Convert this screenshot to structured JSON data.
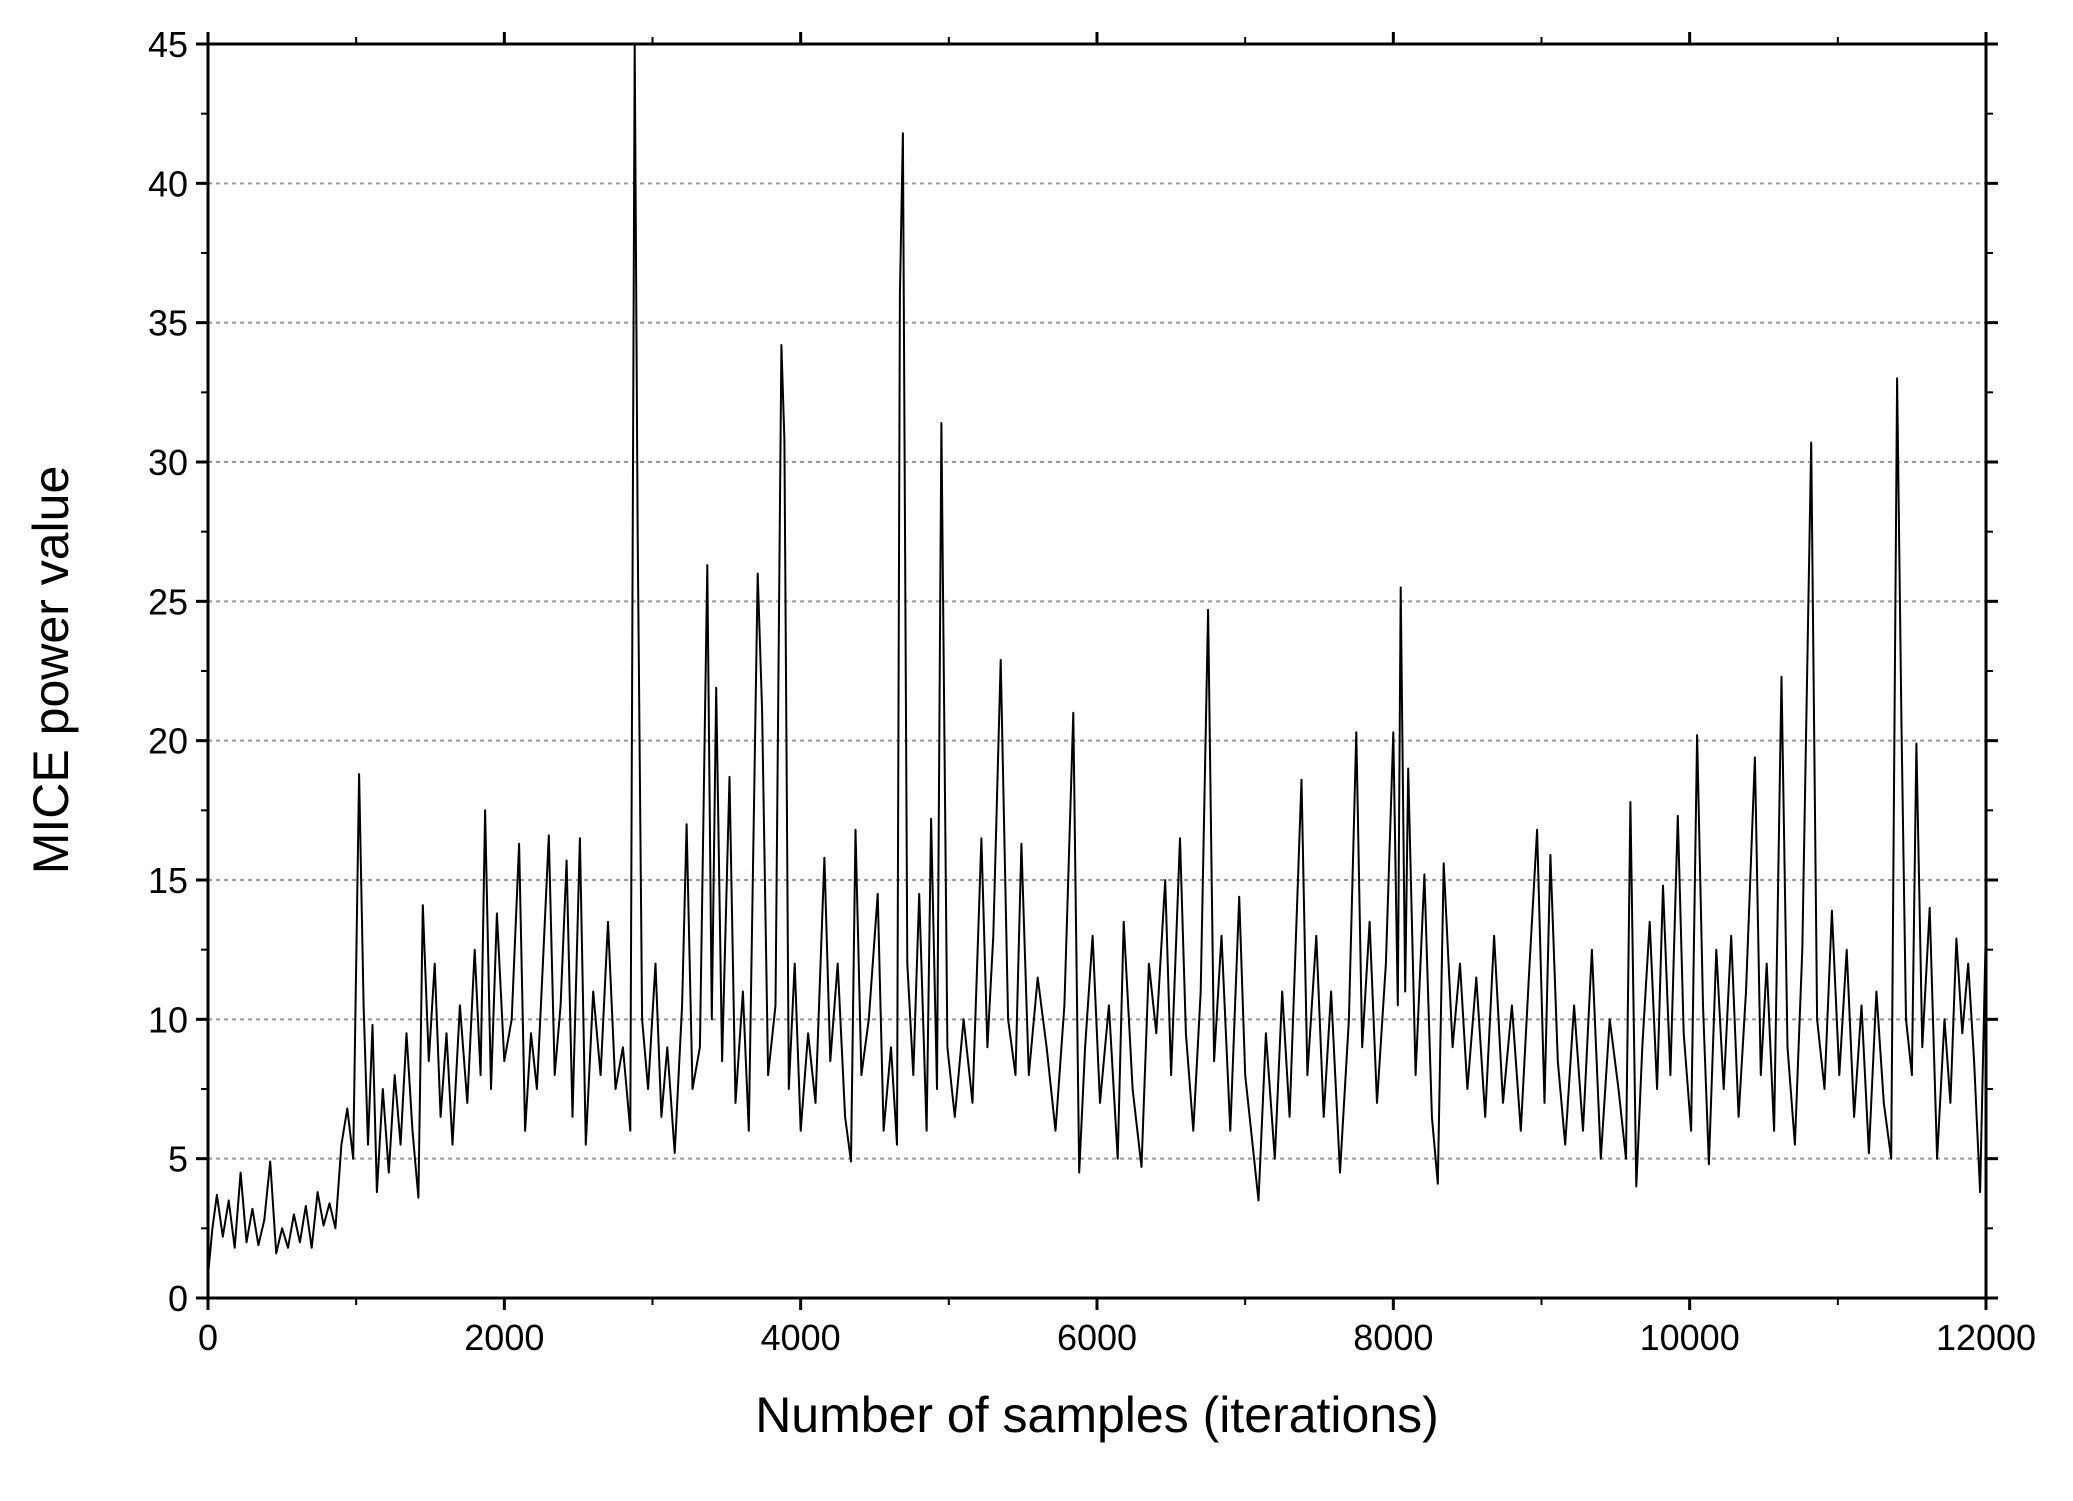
{
  "chart_data": {
    "type": "line",
    "xlabel": "Number of samples (iterations)",
    "ylabel": "MICE power value",
    "xlim": [
      0,
      12000
    ],
    "ylim": [
      0,
      45
    ],
    "xticks": [
      0,
      2000,
      4000,
      6000,
      8000,
      10000,
      12000
    ],
    "yticks": [
      0,
      5,
      10,
      15,
      20,
      25,
      30,
      35,
      40,
      45
    ],
    "grid": true,
    "x": [
      0,
      30,
      60,
      100,
      140,
      180,
      220,
      260,
      300,
      340,
      380,
      420,
      460,
      500,
      540,
      580,
      620,
      660,
      700,
      740,
      780,
      820,
      860,
      900,
      940,
      980,
      1020,
      1050,
      1080,
      1110,
      1140,
      1180,
      1220,
      1260,
      1300,
      1340,
      1380,
      1420,
      1450,
      1490,
      1530,
      1570,
      1610,
      1650,
      1700,
      1750,
      1800,
      1840,
      1870,
      1910,
      1950,
      2000,
      2050,
      2100,
      2140,
      2180,
      2220,
      2260,
      2300,
      2340,
      2380,
      2420,
      2460,
      2510,
      2550,
      2600,
      2650,
      2700,
      2750,
      2800,
      2850,
      2880,
      2900,
      2930,
      2970,
      3020,
      3060,
      3100,
      3150,
      3200,
      3230,
      3270,
      3320,
      3370,
      3400,
      3430,
      3470,
      3520,
      3560,
      3610,
      3650,
      3710,
      3740,
      3780,
      3830,
      3870,
      3890,
      3920,
      3960,
      4000,
      4050,
      4100,
      4160,
      4200,
      4250,
      4300,
      4340,
      4370,
      4410,
      4460,
      4520,
      4560,
      4610,
      4650,
      4670,
      4690,
      4720,
      4760,
      4800,
      4850,
      4880,
      4920,
      4950,
      4990,
      5040,
      5100,
      5160,
      5220,
      5260,
      5300,
      5350,
      5400,
      5450,
      5490,
      5540,
      5600,
      5660,
      5720,
      5780,
      5840,
      5880,
      5920,
      5970,
      6020,
      6080,
      6140,
      6180,
      6240,
      6300,
      6350,
      6400,
      6460,
      6500,
      6560,
      6600,
      6650,
      6700,
      6750,
      6790,
      6840,
      6900,
      6960,
      7000,
      7050,
      7090,
      7140,
      7200,
      7250,
      7300,
      7340,
      7380,
      7420,
      7480,
      7530,
      7580,
      7640,
      7700,
      7750,
      7790,
      7840,
      7890,
      7950,
      8000,
      8030,
      8050,
      8080,
      8100,
      8150,
      8210,
      8260,
      8300,
      8340,
      8400,
      8450,
      8500,
      8560,
      8620,
      8680,
      8740,
      8800,
      8860,
      8920,
      8970,
      9020,
      9060,
      9110,
      9160,
      9220,
      9280,
      9340,
      9400,
      9460,
      9520,
      9570,
      9600,
      9640,
      9680,
      9730,
      9780,
      9820,
      9870,
      9920,
      9960,
      10010,
      10050,
      10090,
      10130,
      10180,
      10230,
      10280,
      10330,
      10380,
      10440,
      10480,
      10520,
      10570,
      10620,
      10660,
      10710,
      10760,
      10820,
      10860,
      10910,
      10960,
      11010,
      11060,
      11110,
      11160,
      11210,
      11260,
      11310,
      11360,
      11400,
      11430,
      11460,
      11500,
      11530,
      11570,
      11620,
      11670,
      11720,
      11760,
      11800,
      11840,
      11880,
      11920,
      11960,
      12000
    ],
    "series": [
      {
        "color": "#000000",
        "values": [
          0.8,
          2.5,
          3.7,
          2.2,
          3.5,
          1.8,
          4.5,
          2.0,
          3.2,
          1.9,
          2.8,
          4.9,
          1.6,
          2.5,
          1.8,
          3.0,
          2.0,
          3.3,
          1.8,
          3.8,
          2.6,
          3.4,
          2.5,
          5.5,
          6.8,
          5.0,
          18.8,
          10.5,
          5.5,
          9.8,
          3.8,
          7.5,
          4.5,
          8.0,
          5.5,
          9.5,
          6.0,
          3.6,
          14.1,
          8.5,
          12.0,
          6.5,
          9.5,
          5.5,
          10.5,
          7.0,
          12.5,
          8.0,
          17.5,
          7.5,
          13.8,
          8.5,
          10.0,
          16.3,
          6.0,
          9.5,
          7.5,
          12.0,
          16.6,
          8.0,
          10.5,
          15.7,
          6.5,
          16.5,
          5.5,
          11.0,
          8.0,
          13.5,
          7.5,
          9.0,
          6.0,
          45,
          27.3,
          10.0,
          7.5,
          12.0,
          6.5,
          9.0,
          5.2,
          10.5,
          17.0,
          7.5,
          9.0,
          26.3,
          10.0,
          21.9,
          8.5,
          18.7,
          7.0,
          11.0,
          6.0,
          26.0,
          21.1,
          8.0,
          10.5,
          34.2,
          30.8,
          7.5,
          12.0,
          6.0,
          9.5,
          7.0,
          15.8,
          8.5,
          12.0,
          6.5,
          4.9,
          16.8,
          8.0,
          10.0,
          14.5,
          6.0,
          9.0,
          5.5,
          36.0,
          41.8,
          12.0,
          8.0,
          14.5,
          6.0,
          17.2,
          7.5,
          31.4,
          9.0,
          6.5,
          10.0,
          7.0,
          16.5,
          9.0,
          13.0,
          22.9,
          10.0,
          8.0,
          16.3,
          8.0,
          11.5,
          9.0,
          6.0,
          10.5,
          21.0,
          4.5,
          9.0,
          13.0,
          7.0,
          10.5,
          5.0,
          13.5,
          7.5,
          4.7,
          12.0,
          9.5,
          15.0,
          8.0,
          16.5,
          9.5,
          6.0,
          11.0,
          24.7,
          8.5,
          13.0,
          6.0,
          14.4,
          8.0,
          5.5,
          3.5,
          9.5,
          5.0,
          11.0,
          6.5,
          12.5,
          18.6,
          8.0,
          13.0,
          6.5,
          11.0,
          4.5,
          10.0,
          20.3,
          9.0,
          13.5,
          7.0,
          12.0,
          20.3,
          10.5,
          25.5,
          11.0,
          19.0,
          8.0,
          15.2,
          6.5,
          4.1,
          15.6,
          9.0,
          12.0,
          7.5,
          11.5,
          6.5,
          13.0,
          7.0,
          10.5,
          6.0,
          12.0,
          16.8,
          7.0,
          15.9,
          8.5,
          5.5,
          10.5,
          6.0,
          12.5,
          5.0,
          10.0,
          7.5,
          5.0,
          17.8,
          4.0,
          9.0,
          13.5,
          7.5,
          14.8,
          8.0,
          17.3,
          9.5,
          6.0,
          20.2,
          10.5,
          4.8,
          12.5,
          7.5,
          13.0,
          6.5,
          11.0,
          19.4,
          8.0,
          12.0,
          6.0,
          22.3,
          9.0,
          5.5,
          12.5,
          30.7,
          10.0,
          7.5,
          13.9,
          8.0,
          12.5,
          6.5,
          10.5,
          5.2,
          11.0,
          7.0,
          5.0,
          33.0,
          20.5,
          10.0,
          8.0,
          19.9,
          9.0,
          14.0,
          5.0,
          10.0,
          7.0,
          12.9,
          9.5,
          12.0,
          8.5,
          3.8,
          13.5
        ]
      }
    ]
  }
}
